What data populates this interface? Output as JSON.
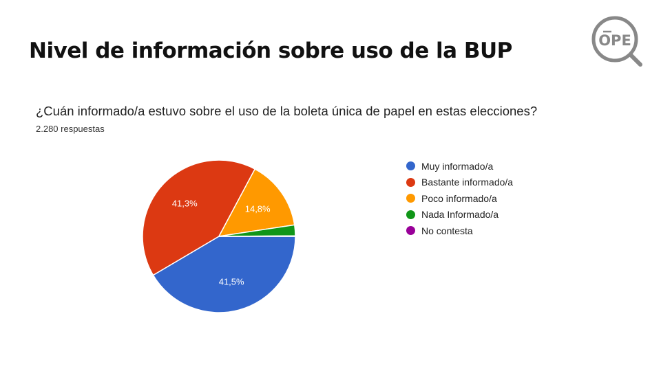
{
  "page": {
    "title": "Nivel de información sobre uso de la BUP",
    "logo_text": "OPE"
  },
  "chart_data": {
    "type": "pie",
    "title": "¿Cuán informado/a estuvo sobre el uso de la boleta única de papel en estas elecciones?",
    "subtitle": "2.280 respuestas",
    "categories": [
      "Muy informado/a",
      "Bastante informado/a",
      "Poco informado/a",
      "Nada Informado/a",
      "No contesta"
    ],
    "values": [
      41.5,
      41.3,
      14.8,
      2.3,
      0.1
    ],
    "data_labels": [
      "41,5%",
      "41,3%",
      "14,8%",
      "",
      ""
    ],
    "colors": [
      "#3366cc",
      "#dc3912",
      "#ff9900",
      "#109618",
      "#990099"
    ],
    "legend_position": "right"
  }
}
